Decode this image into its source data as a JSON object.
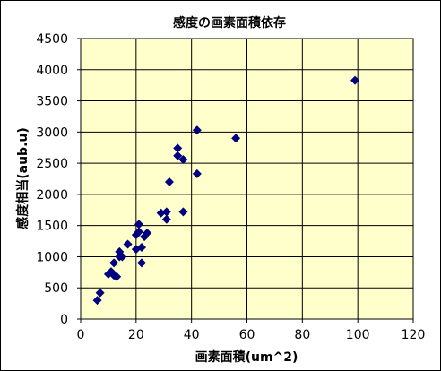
{
  "chart_data": {
    "type": "scatter",
    "title": "感度の画素面積依存",
    "xlabel": "画素面積(um^2)",
    "ylabel": "感度相当(aub.u)",
    "xlim": [
      0,
      120
    ],
    "ylim": [
      0,
      4500
    ],
    "x_ticks": [
      0,
      20,
      40,
      60,
      80,
      100,
      120
    ],
    "y_ticks": [
      0,
      500,
      1000,
      1500,
      2000,
      2500,
      3000,
      3500,
      4000,
      4500
    ],
    "grid": true,
    "legend": "none",
    "marker": "diamond",
    "colors": {
      "marker": "#000080",
      "plot_background": "#FFFFCC",
      "grid": "#000000"
    },
    "series": [
      {
        "points": [
          [
            6,
            300
          ],
          [
            7,
            420
          ],
          [
            10,
            720
          ],
          [
            11,
            760
          ],
          [
            12,
            700
          ],
          [
            13,
            680
          ],
          [
            12,
            900
          ],
          [
            14,
            1000
          ],
          [
            14,
            1080
          ],
          [
            15,
            1000
          ],
          [
            17,
            1200
          ],
          [
            20,
            1120
          ],
          [
            20,
            1350
          ],
          [
            21,
            1520
          ],
          [
            21,
            1400
          ],
          [
            22,
            1150
          ],
          [
            22,
            900
          ],
          [
            23,
            1320
          ],
          [
            24,
            1380
          ],
          [
            29,
            1700
          ],
          [
            31,
            1600
          ],
          [
            31,
            1720
          ],
          [
            32,
            2200
          ],
          [
            35,
            2620
          ],
          [
            35,
            2740
          ],
          [
            37,
            2560
          ],
          [
            37,
            1720
          ],
          [
            42,
            2330
          ],
          [
            42,
            3030
          ],
          [
            56,
            2900
          ],
          [
            99,
            3830
          ]
        ]
      }
    ]
  }
}
